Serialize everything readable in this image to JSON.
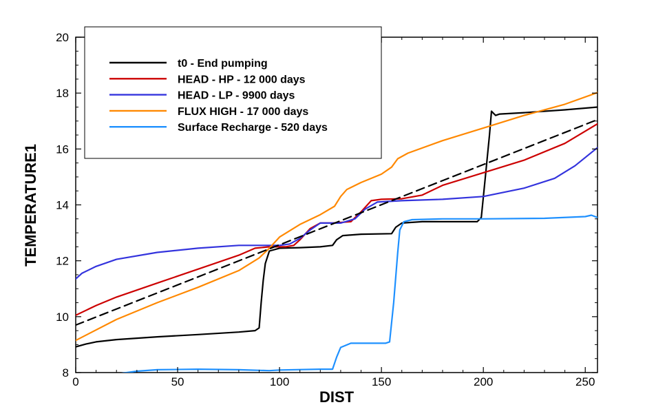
{
  "chart_data": {
    "type": "line",
    "title": "",
    "xlabel": "DIST",
    "ylabel": "TEMPERATURE1",
    "xlim": [
      0,
      256
    ],
    "ylim": [
      8,
      20
    ],
    "xticks": [
      0,
      50,
      100,
      150,
      200,
      250
    ],
    "yticks": [
      8,
      10,
      12,
      14,
      16,
      18,
      20
    ],
    "grid": false,
    "legend_position": "top-left",
    "series": [
      {
        "name": "t0 - End pumping",
        "color": "#000000",
        "dash": "solid",
        "points": [
          [
            0,
            8.92
          ],
          [
            5,
            9.02
          ],
          [
            10,
            9.1
          ],
          [
            20,
            9.18
          ],
          [
            40,
            9.28
          ],
          [
            60,
            9.36
          ],
          [
            80,
            9.45
          ],
          [
            88,
            9.5
          ],
          [
            90,
            9.6
          ],
          [
            91,
            10.5
          ],
          [
            92,
            11.3
          ],
          [
            93,
            11.9
          ],
          [
            95,
            12.35
          ],
          [
            100,
            12.45
          ],
          [
            110,
            12.47
          ],
          [
            120,
            12.5
          ],
          [
            126,
            12.55
          ],
          [
            128,
            12.75
          ],
          [
            131,
            12.9
          ],
          [
            140,
            12.95
          ],
          [
            155,
            12.97
          ],
          [
            157,
            13.2
          ],
          [
            160,
            13.35
          ],
          [
            170,
            13.4
          ],
          [
            197,
            13.4
          ],
          [
            199,
            13.55
          ],
          [
            201,
            15
          ],
          [
            203,
            16.5
          ],
          [
            204,
            17.35
          ],
          [
            206,
            17.2
          ],
          [
            208,
            17.25
          ],
          [
            220,
            17.3
          ],
          [
            240,
            17.4
          ],
          [
            256,
            17.5
          ]
        ]
      },
      {
        "name": "HEAD - HP - 12 000 days",
        "color": "#cc0000",
        "dash": "solid",
        "points": [
          [
            0,
            10.05
          ],
          [
            10,
            10.4
          ],
          [
            20,
            10.7
          ],
          [
            40,
            11.2
          ],
          [
            60,
            11.7
          ],
          [
            80,
            12.2
          ],
          [
            88,
            12.45
          ],
          [
            95,
            12.5
          ],
          [
            103,
            12.5
          ],
          [
            107,
            12.55
          ],
          [
            110,
            12.75
          ],
          [
            115,
            13.15
          ],
          [
            120,
            13.35
          ],
          [
            126,
            13.35
          ],
          [
            135,
            13.4
          ],
          [
            140,
            13.75
          ],
          [
            145,
            14.15
          ],
          [
            150,
            14.2
          ],
          [
            160,
            14.22
          ],
          [
            170,
            14.35
          ],
          [
            180,
            14.7
          ],
          [
            200,
            15.15
          ],
          [
            220,
            15.6
          ],
          [
            240,
            16.2
          ],
          [
            256,
            16.9
          ]
        ]
      },
      {
        "name": "HEAD - LP - 9900 days",
        "color": "#3333dd",
        "dash": "solid",
        "points": [
          [
            0,
            11.35
          ],
          [
            3,
            11.55
          ],
          [
            10,
            11.8
          ],
          [
            20,
            12.05
          ],
          [
            40,
            12.3
          ],
          [
            60,
            12.45
          ],
          [
            80,
            12.55
          ],
          [
            100,
            12.55
          ],
          [
            105,
            12.6
          ],
          [
            110,
            12.8
          ],
          [
            115,
            13.1
          ],
          [
            120,
            13.35
          ],
          [
            130,
            13.35
          ],
          [
            137,
            13.5
          ],
          [
            142,
            13.85
          ],
          [
            148,
            14.1
          ],
          [
            160,
            14.15
          ],
          [
            180,
            14.2
          ],
          [
            200,
            14.3
          ],
          [
            220,
            14.6
          ],
          [
            235,
            14.95
          ],
          [
            245,
            15.4
          ],
          [
            256,
            16.05
          ]
        ]
      },
      {
        "name": "FLUX HIGH - 17 000 days",
        "color": "#ff8800",
        "dash": "solid",
        "points": [
          [
            0,
            9.15
          ],
          [
            20,
            9.9
          ],
          [
            40,
            10.5
          ],
          [
            60,
            11.05
          ],
          [
            80,
            11.65
          ],
          [
            90,
            12.1
          ],
          [
            95,
            12.45
          ],
          [
            100,
            12.85
          ],
          [
            110,
            13.3
          ],
          [
            120,
            13.65
          ],
          [
            127,
            13.95
          ],
          [
            130,
            14.3
          ],
          [
            133,
            14.55
          ],
          [
            140,
            14.8
          ],
          [
            150,
            15.1
          ],
          [
            155,
            15.35
          ],
          [
            158,
            15.65
          ],
          [
            163,
            15.85
          ],
          [
            180,
            16.3
          ],
          [
            200,
            16.75
          ],
          [
            220,
            17.2
          ],
          [
            240,
            17.6
          ],
          [
            256,
            18.02
          ]
        ]
      },
      {
        "name": "Surface Recharge - 520 days",
        "color": "#1e90ff",
        "dash": "solid",
        "points": [
          [
            20,
            7.95
          ],
          [
            30,
            8.05
          ],
          [
            40,
            8.1
          ],
          [
            60,
            8.12
          ],
          [
            80,
            8.1
          ],
          [
            95,
            8.07
          ],
          [
            100,
            8.09
          ],
          [
            120,
            8.12
          ],
          [
            126,
            8.12
          ],
          [
            128,
            8.55
          ],
          [
            130,
            8.9
          ],
          [
            135,
            9.05
          ],
          [
            152,
            9.05
          ],
          [
            154,
            9.1
          ],
          [
            156,
            10.5
          ],
          [
            158,
            12.3
          ],
          [
            159,
            13.1
          ],
          [
            161,
            13.4
          ],
          [
            165,
            13.47
          ],
          [
            180,
            13.5
          ],
          [
            200,
            13.5
          ],
          [
            230,
            13.52
          ],
          [
            250,
            13.58
          ],
          [
            253,
            13.63
          ],
          [
            256,
            13.55
          ]
        ]
      },
      {
        "name": "",
        "color": "#000000",
        "dash": "dashed",
        "points": [
          [
            0,
            9.7
          ],
          [
            256,
            17.05
          ]
        ]
      }
    ]
  }
}
